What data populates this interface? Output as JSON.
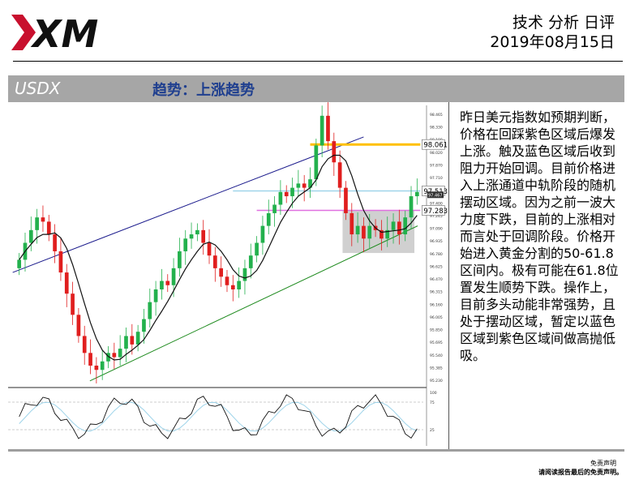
{
  "header": {
    "logo_text": "XM",
    "title": "技术 分析 日评",
    "date": "2019年08月15日"
  },
  "banner": {
    "symbol": "USDX",
    "trend": "趋势：上涨趋势"
  },
  "analysis_text": "昨日美元指数如预期判断，价格在回踩紫色区域后爆发上涨。触及蓝色区域后收到阻力开始回调。目前价格进入上涨通道中轨阶段的随机摆动区域。因为之前一波大力度下跌，目前的上涨相对而言处于回调阶段。价格开始进入黄金分割的50-61.8区间内。极有可能在61.8位置发生顺势下跌。操作上，目前多头动能非常强势，且处于摆动区域，暂定以蓝色区域到紫色区域间做高抛低吸。",
  "disclaimer": {
    "title": "免责声明",
    "body": "请阅读报告最后的免责声明。"
  },
  "colors": {
    "up_candle": "#23b14d",
    "down_candle": "#e01e1e",
    "upper_channel": "#1a1a8c",
    "lower_channel": "#1d8a1d",
    "yellow_level": "#ffc000",
    "light_blue_level": "#9fd4ea",
    "magenta_level": "#e070e0",
    "grey_zone": "#c8c8c8",
    "ma_line": "#111111",
    "banner_bg": "#a6a6a6",
    "trend_text": "#1f3f8f"
  },
  "chart_data": {
    "type": "candlestick",
    "price_axis_ticks": [
      "98.465",
      "98.330",
      "98.180",
      "98.020",
      "97.870",
      "97.710",
      "97.555",
      "97.400",
      "97.245",
      "97.090",
      "96.935",
      "96.780",
      "96.625",
      "96.470",
      "96.315",
      "96.160",
      "96.005",
      "95.850",
      "95.695",
      "95.540",
      "95.385",
      "95.230"
    ],
    "ylim": [
      95.23,
      98.465
    ],
    "levels": [
      {
        "value": 98.061,
        "label": "98.061",
        "color": "yellow"
      },
      {
        "value": 97.513,
        "label": "97.513",
        "color": "light-blue"
      },
      {
        "value": 97.283,
        "label": "97.283",
        "color": "magenta"
      }
    ],
    "current_price": "97.467",
    "closes": [
      96.7,
      96.9,
      97.05,
      97.2,
      97.15,
      97.0,
      96.8,
      96.55,
      96.3,
      96.05,
      95.8,
      95.6,
      95.45,
      95.4,
      95.5,
      95.6,
      95.55,
      95.65,
      95.8,
      95.7,
      95.85,
      96.0,
      96.2,
      96.35,
      96.45,
      96.4,
      96.6,
      96.8,
      96.95,
      97.0,
      97.05,
      96.9,
      96.75,
      96.6,
      96.5,
      96.4,
      96.35,
      96.45,
      96.6,
      96.75,
      96.9,
      97.1,
      97.25,
      97.35,
      97.5,
      97.45,
      97.55,
      97.6,
      97.55,
      97.65,
      98.05,
      98.4,
      98.1,
      97.85,
      97.55,
      97.25,
      97.0,
      97.1,
      96.95,
      97.1,
      97.05,
      96.95,
      97.05,
      97.15,
      97.0,
      97.2,
      97.45,
      97.5
    ],
    "oscillator": {
      "levels": [
        "75",
        "25"
      ],
      "scale_top": "100"
    }
  }
}
